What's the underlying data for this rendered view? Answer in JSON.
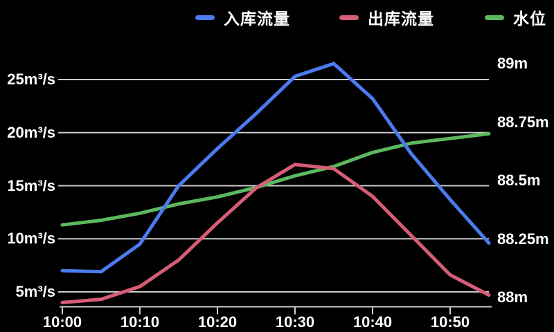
{
  "legend": {
    "items": [
      {
        "label": "入库流量",
        "color": "#4c7bf0"
      },
      {
        "label": "出库流量",
        "color": "#d65d76"
      },
      {
        "label": "水位",
        "color": "#5cb85f"
      }
    ]
  },
  "colors": {
    "background": "#000000",
    "grid": "#cccccc",
    "axis": "#cccccc",
    "text": "#ffffff",
    "inflow": "#4c7bf0",
    "outflow": "#d65d76",
    "water_level": "#5cb85f"
  },
  "chart_data": {
    "type": "line",
    "x": [
      "10:00",
      "10:05",
      "10:10",
      "10:15",
      "10:20",
      "10:25",
      "10:30",
      "10:35",
      "10:40",
      "10:45",
      "10:50",
      "10:55"
    ],
    "series": [
      {
        "name": "入库流量",
        "axis": "left",
        "color": "#4c7bf0",
        "values": [
          7,
          6.9,
          9.5,
          15,
          18.5,
          21.8,
          25.3,
          26.5,
          23.2,
          18,
          13.7,
          9.6
        ]
      },
      {
        "name": "出库流量",
        "axis": "left",
        "color": "#d65d76",
        "values": [
          4,
          4.3,
          5.5,
          8,
          11.5,
          14.8,
          17,
          16.6,
          14,
          10.3,
          6.6,
          4.7
        ]
      },
      {
        "name": "水位",
        "axis": "right",
        "color": "#5cb85f",
        "values": [
          88.31,
          88.33,
          88.36,
          88.4,
          88.43,
          88.47,
          88.52,
          88.56,
          88.62,
          88.66,
          88.68,
          88.7
        ]
      }
    ],
    "left_axis": {
      "tick_labels": [
        "25m³/s",
        "20m³/s",
        "15m³/s",
        "10m³/s",
        "5m³/s"
      ],
      "tick_values": [
        25,
        20,
        15,
        10,
        5
      ],
      "range": [
        5,
        25
      ],
      "unit": "m³/s"
    },
    "right_axis": {
      "tick_labels": [
        "89m",
        "88.75m",
        "88.5m",
        "88.25m",
        "88m"
      ],
      "tick_values": [
        89,
        88.75,
        88.5,
        88.25,
        88
      ],
      "range": [
        88,
        89
      ],
      "unit": "m"
    },
    "x_axis": {
      "tick_labels": [
        "10:00",
        "10:10",
        "10:20",
        "10:30",
        "10:40",
        "10:50"
      ],
      "tick_every": 2
    },
    "grid": true,
    "legend_position": "top"
  }
}
